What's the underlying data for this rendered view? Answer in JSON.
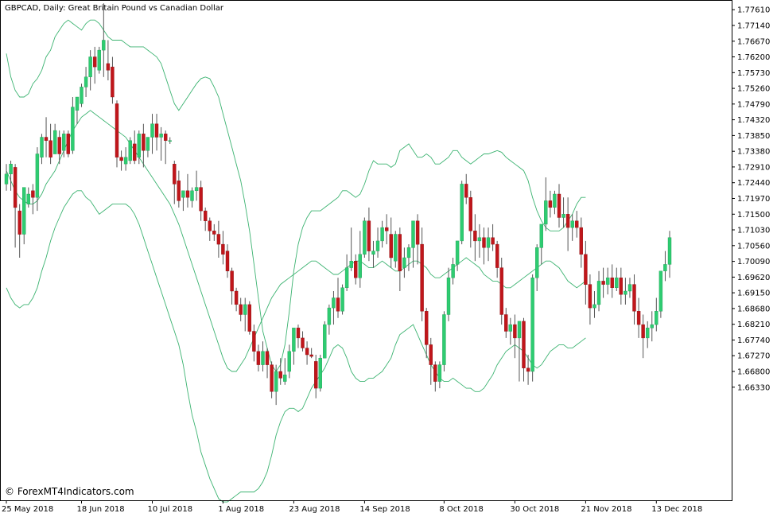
{
  "chart_data": {
    "type": "candlestick",
    "title": "GBPCAD, Daily:  Great Britain Pound vs Canadian Dollar",
    "watermark": "© ForexMT4Indicators.com",
    "ylim": [
      1.6295,
      1.779
    ],
    "y_ticks": [
      "1.77610",
      "1.77140",
      "1.76670",
      "1.76200",
      "1.75730",
      "1.75260",
      "1.74790",
      "1.74320",
      "1.73850",
      "1.73380",
      "1.72910",
      "1.72440",
      "1.71970",
      "1.71500",
      "1.71030",
      "1.70560",
      "1.70090",
      "1.69620",
      "1.69150",
      "1.68680",
      "1.68210",
      "1.67740",
      "1.67270",
      "1.66800",
      "1.66330"
    ],
    "x_labels": [
      {
        "label": "25 May 2018",
        "index": 0
      },
      {
        "label": "18 Jun 2018",
        "index": 17
      },
      {
        "label": "10 Jul 2018",
        "index": 33
      },
      {
        "label": "1 Aug 2018",
        "index": 49
      },
      {
        "label": "23 Aug 2018",
        "index": 65
      },
      {
        "label": "14 Sep 2018",
        "index": 81
      },
      {
        "label": "8 Oct 2018",
        "index": 99
      },
      {
        "label": "30 Oct 2018",
        "index": 115
      },
      {
        "label": "21 Nov 2018",
        "index": 131
      },
      {
        "label": "13 Dec 2018",
        "index": 147
      }
    ],
    "colors": {
      "bull": "#2ecc71",
      "bear": "#c0161b",
      "band": "#3cb371",
      "wick": "#555555"
    },
    "bands": {
      "upper": [
        1.763,
        1.756,
        1.752,
        1.75,
        1.75,
        1.751,
        1.754,
        1.7555,
        1.758,
        1.762,
        1.764,
        1.768,
        1.77,
        1.772,
        1.773,
        1.772,
        1.771,
        1.77,
        1.772,
        1.773,
        1.773,
        1.772,
        1.77,
        1.768,
        1.767,
        1.767,
        1.767,
        1.766,
        1.765,
        1.765,
        1.765,
        1.765,
        1.764,
        1.763,
        1.762,
        1.76,
        1.756,
        1.752,
        1.748,
        1.746,
        1.748,
        1.75,
        1.752,
        1.754,
        1.7555,
        1.756,
        1.7555,
        1.753,
        1.75,
        1.745,
        1.74,
        1.735,
        1.73,
        1.725,
        1.718,
        1.71,
        1.7,
        1.69,
        1.68,
        1.675,
        1.67,
        1.668,
        1.67,
        1.676,
        1.686,
        1.698,
        1.706,
        1.711,
        1.714,
        1.716,
        1.716,
        1.716,
        1.717,
        1.718,
        1.719,
        1.72,
        1.722,
        1.722,
        1.721,
        1.72,
        1.721,
        1.724,
        1.728,
        1.731,
        1.73,
        1.73,
        1.73,
        1.729,
        1.73,
        1.734,
        1.735,
        1.736,
        1.734,
        1.732,
        1.732,
        1.733,
        1.732,
        1.73,
        1.73,
        1.731,
        1.732,
        1.734,
        1.734,
        1.732,
        1.731,
        1.73,
        1.731,
        1.732,
        1.733,
        1.733,
        1.7335,
        1.734,
        1.7335,
        1.732,
        1.731,
        1.73,
        1.729,
        1.728,
        1.725,
        1.72,
        1.716,
        1.713,
        1.711,
        1.71,
        1.71,
        1.71,
        1.711,
        1.713,
        1.715,
        1.718,
        1.72,
        1.72
      ],
      "middle": [
        1.728,
        1.725,
        1.722,
        1.72,
        1.719,
        1.718,
        1.718,
        1.719,
        1.721,
        1.724,
        1.726,
        1.728,
        1.731,
        1.734,
        1.737,
        1.74,
        1.742,
        1.744,
        1.745,
        1.746,
        1.745,
        1.744,
        1.743,
        1.742,
        1.741,
        1.74,
        1.739,
        1.738,
        1.736,
        1.734,
        1.732,
        1.73,
        1.728,
        1.726,
        1.724,
        1.722,
        1.72,
        1.718,
        1.715,
        1.712,
        1.708,
        1.704,
        1.7,
        1.696,
        1.692,
        1.688,
        1.684,
        1.68,
        1.676,
        1.672,
        1.669,
        1.668,
        1.668,
        1.67,
        1.672,
        1.675,
        1.678,
        1.681,
        1.684,
        1.687,
        1.69,
        1.692,
        1.694,
        1.695,
        1.696,
        1.697,
        1.698,
        1.699,
        1.7,
        1.701,
        1.701,
        1.7,
        1.699,
        1.698,
        1.697,
        1.697,
        1.698,
        1.699,
        1.7,
        1.701,
        1.701,
        1.7,
        1.699,
        1.699,
        1.7,
        1.701,
        1.7,
        1.699,
        1.698,
        1.698,
        1.699,
        1.7,
        1.701,
        1.701,
        1.7,
        1.699,
        1.697,
        1.696,
        1.696,
        1.697,
        1.698,
        1.699,
        1.7,
        1.701,
        1.702,
        1.701,
        1.7,
        1.699,
        1.697,
        1.696,
        1.695,
        1.695,
        1.694,
        1.693,
        1.693,
        1.694,
        1.695,
        1.696,
        1.697,
        1.698,
        1.699,
        1.7,
        1.701,
        1.701,
        1.7,
        1.699,
        1.697,
        1.695,
        1.694,
        1.693,
        1.694,
        1.695
      ],
      "lower": [
        1.693,
        1.69,
        1.688,
        1.687,
        1.688,
        1.688,
        1.69,
        1.693,
        1.698,
        1.702,
        1.707,
        1.711,
        1.714,
        1.717,
        1.719,
        1.721,
        1.722,
        1.722,
        1.72,
        1.719,
        1.717,
        1.715,
        1.716,
        1.717,
        1.718,
        1.718,
        1.718,
        1.718,
        1.717,
        1.715,
        1.712,
        1.708,
        1.704,
        1.7,
        1.696,
        1.692,
        1.688,
        1.684,
        1.68,
        1.676,
        1.67,
        1.662,
        1.655,
        1.65,
        1.644,
        1.64,
        1.636,
        1.633,
        1.63,
        1.629,
        1.629,
        1.63,
        1.631,
        1.632,
        1.632,
        1.632,
        1.632,
        1.633,
        1.635,
        1.638,
        1.643,
        1.649,
        1.653,
        1.656,
        1.657,
        1.657,
        1.656,
        1.657,
        1.66,
        1.663,
        1.665,
        1.667,
        1.669,
        1.672,
        1.675,
        1.676,
        1.675,
        1.672,
        1.668,
        1.666,
        1.665,
        1.665,
        1.666,
        1.666,
        1.667,
        1.668,
        1.67,
        1.672,
        1.676,
        1.679,
        1.68,
        1.681,
        1.682,
        1.679,
        1.676,
        1.673,
        1.67,
        1.668,
        1.666,
        1.665,
        1.665,
        1.666,
        1.665,
        1.664,
        1.663,
        1.663,
        1.662,
        1.662,
        1.663,
        1.665,
        1.667,
        1.67,
        1.672,
        1.674,
        1.675,
        1.676,
        1.675,
        1.674,
        1.672,
        1.67,
        1.669,
        1.67,
        1.672,
        1.674,
        1.675,
        1.676,
        1.676,
        1.675,
        1.675,
        1.676,
        1.677,
        1.678
      ]
    },
    "candles": [
      [
        1.724,
        1.73,
        1.727,
        1.722
      ],
      [
        1.727,
        1.731,
        1.73,
        1.722
      ],
      [
        1.729,
        1.73,
        1.717,
        1.705
      ],
      [
        1.716,
        1.718,
        1.709,
        1.702
      ],
      [
        1.709,
        1.722,
        1.723,
        1.706
      ],
      [
        1.718,
        1.723,
        1.721,
        1.717
      ],
      [
        1.722,
        1.724,
        1.72,
        1.715
      ],
      [
        1.72,
        1.735,
        1.733,
        1.716
      ],
      [
        1.732,
        1.739,
        1.738,
        1.73
      ],
      [
        1.738,
        1.744,
        1.737,
        1.732
      ],
      [
        1.737,
        1.742,
        1.732,
        1.73
      ],
      [
        1.733,
        1.742,
        1.74,
        1.733
      ],
      [
        1.738,
        1.74,
        1.733,
        1.73
      ],
      [
        1.734,
        1.74,
        1.739,
        1.732
      ],
      [
        1.739,
        1.74,
        1.733,
        1.732
      ],
      [
        1.734,
        1.75,
        1.747,
        1.733
      ],
      [
        1.746,
        1.749,
        1.75,
        1.742
      ],
      [
        1.748,
        1.754,
        1.753,
        1.747
      ],
      [
        1.753,
        1.759,
        1.756,
        1.75
      ],
      [
        1.756,
        1.764,
        1.762,
        1.752
      ],
      [
        1.762,
        1.765,
        1.759,
        1.754
      ],
      [
        1.758,
        1.765,
        1.764,
        1.757
      ],
      [
        1.764,
        1.778,
        1.767,
        1.756
      ],
      [
        1.76,
        1.767,
        1.758,
        1.755
      ],
      [
        1.759,
        1.762,
        1.75,
        1.748
      ],
      [
        1.748,
        1.749,
        1.732,
        1.729
      ],
      [
        1.732,
        1.734,
        1.731,
        1.728
      ],
      [
        1.73,
        1.735,
        1.732,
        1.728
      ],
      [
        1.731,
        1.738,
        1.737,
        1.73
      ],
      [
        1.736,
        1.74,
        1.731,
        1.73
      ],
      [
        1.732,
        1.74,
        1.739,
        1.73
      ],
      [
        1.739,
        1.742,
        1.734,
        1.729
      ],
      [
        1.734,
        1.738,
        1.738,
        1.732
      ],
      [
        1.738,
        1.745,
        1.742,
        1.733
      ],
      [
        1.742,
        1.745,
        1.738,
        1.734
      ],
      [
        1.738,
        1.741,
        1.739,
        1.731
      ],
      [
        1.739,
        1.74,
        1.737,
        1.73
      ],
      [
        1.737,
        1.738,
        1.737,
        1.736
      ],
      [
        1.73,
        1.731,
        1.724,
        1.718
      ],
      [
        1.725,
        1.728,
        1.719,
        1.717
      ],
      [
        1.72,
        1.721,
        1.722,
        1.716
      ],
      [
        1.722,
        1.727,
        1.72,
        1.717
      ],
      [
        1.719,
        1.723,
        1.722,
        1.717
      ],
      [
        1.722,
        1.728,
        1.723,
        1.719
      ],
      [
        1.723,
        1.725,
        1.716,
        1.713
      ],
      [
        1.716,
        1.717,
        1.713,
        1.71
      ],
      [
        1.713,
        1.714,
        1.71,
        1.707
      ],
      [
        1.71,
        1.712,
        1.709,
        1.707
      ],
      [
        1.709,
        1.713,
        1.706,
        1.702
      ],
      [
        1.706,
        1.71,
        1.703,
        1.7
      ],
      [
        1.704,
        1.706,
        1.698,
        1.696
      ],
      [
        1.698,
        1.699,
        1.692,
        1.688
      ],
      [
        1.692,
        1.693,
        1.688,
        1.686
      ],
      [
        1.688,
        1.69,
        1.685,
        1.683
      ],
      [
        1.685,
        1.69,
        1.688,
        1.68
      ],
      [
        1.688,
        1.689,
        1.68,
        1.679
      ],
      [
        1.68,
        1.682,
        1.674,
        1.671
      ],
      [
        1.674,
        1.676,
        1.67,
        1.668
      ],
      [
        1.67,
        1.677,
        1.674,
        1.668
      ],
      [
        1.674,
        1.675,
        1.67,
        1.666
      ],
      [
        1.67,
        1.671,
        1.662,
        1.66
      ],
      [
        1.662,
        1.67,
        1.668,
        1.658
      ],
      [
        1.668,
        1.672,
        1.666,
        1.664
      ],
      [
        1.665,
        1.672,
        1.667,
        1.664
      ],
      [
        1.668,
        1.676,
        1.674,
        1.666
      ],
      [
        1.674,
        1.68,
        1.681,
        1.67
      ],
      [
        1.681,
        1.682,
        1.678,
        1.675
      ],
      [
        1.678,
        1.68,
        1.675,
        1.674
      ],
      [
        1.675,
        1.677,
        1.673,
        1.67
      ],
      [
        1.673,
        1.675,
        1.6725,
        1.672
      ],
      [
        1.671,
        1.673,
        1.663,
        1.66
      ],
      [
        1.663,
        1.673,
        1.672,
        1.662
      ],
      [
        1.672,
        1.683,
        1.682,
        1.672
      ],
      [
        1.682,
        1.688,
        1.687,
        1.679
      ],
      [
        1.687,
        1.692,
        1.69,
        1.682
      ],
      [
        1.69,
        1.696,
        1.686,
        1.684
      ],
      [
        1.686,
        1.694,
        1.693,
        1.685
      ],
      [
        1.693,
        1.703,
        1.699,
        1.692
      ],
      [
        1.699,
        1.711,
        1.701,
        1.698
      ],
      [
        1.701,
        1.703,
        1.696,
        1.694
      ],
      [
        1.696,
        1.71,
        1.703,
        1.693
      ],
      [
        1.703,
        1.714,
        1.713,
        1.702
      ],
      [
        1.713,
        1.717,
        1.704,
        1.701
      ],
      [
        1.703,
        1.707,
        1.704,
        1.699
      ],
      [
        1.704,
        1.711,
        1.707,
        1.702
      ],
      [
        1.707,
        1.713,
        1.711,
        1.705
      ],
      [
        1.711,
        1.715,
        1.71,
        1.706
      ],
      [
        1.709,
        1.714,
        1.702,
        1.699
      ],
      [
        1.701,
        1.71,
        1.709,
        1.699
      ],
      [
        1.709,
        1.711,
        1.698,
        1.692
      ],
      [
        1.699,
        1.705,
        1.702,
        1.696
      ],
      [
        1.702,
        1.706,
        1.705,
        1.698
      ],
      [
        1.705,
        1.711,
        1.713,
        1.699
      ],
      [
        1.713,
        1.715,
        1.706,
        1.7
      ],
      [
        1.706,
        1.711,
        1.686,
        1.683
      ],
      [
        1.686,
        1.687,
        1.676,
        1.672
      ],
      [
        1.676,
        1.678,
        1.67,
        1.664
      ],
      [
        1.67,
        1.671,
        1.665,
        1.662
      ],
      [
        1.665,
        1.671,
        1.67,
        1.663
      ],
      [
        1.67,
        1.686,
        1.685,
        1.668
      ],
      [
        1.685,
        1.699,
        1.696,
        1.683
      ],
      [
        1.696,
        1.702,
        1.7,
        1.694
      ],
      [
        1.7,
        1.707,
        1.707,
        1.698
      ],
      [
        1.707,
        1.725,
        1.724,
        1.706
      ],
      [
        1.724,
        1.727,
        1.72,
        1.718
      ],
      [
        1.72,
        1.722,
        1.71,
        1.705
      ],
      [
        1.71,
        1.715,
        1.707,
        1.701
      ],
      [
        1.707,
        1.712,
        1.708,
        1.702
      ],
      [
        1.708,
        1.711,
        1.705,
        1.7
      ],
      [
        1.705,
        1.711,
        1.708,
        1.701
      ],
      [
        1.708,
        1.712,
        1.706,
        1.704
      ],
      [
        1.706,
        1.707,
        1.699,
        1.696
      ],
      [
        1.699,
        1.702,
        1.685,
        1.682
      ],
      [
        1.685,
        1.687,
        1.68,
        1.678
      ],
      [
        1.68,
        1.684,
        1.682,
        1.676
      ],
      [
        1.682,
        1.685,
        1.678,
        1.672
      ],
      [
        1.678,
        1.683,
        1.683,
        1.665
      ],
      [
        1.683,
        1.684,
        1.669,
        1.665
      ],
      [
        1.669,
        1.673,
        1.668,
        1.664
      ],
      [
        1.668,
        1.697,
        1.696,
        1.665
      ],
      [
        1.696,
        1.706,
        1.705,
        1.692
      ],
      [
        1.705,
        1.711,
        1.712,
        1.7
      ],
      [
        1.712,
        1.726,
        1.719,
        1.71
      ],
      [
        1.719,
        1.722,
        1.717,
        1.714
      ],
      [
        1.717,
        1.722,
        1.721,
        1.715
      ],
      [
        1.721,
        1.724,
        1.714,
        1.711
      ],
      [
        1.714,
        1.72,
        1.715,
        1.711
      ],
      [
        1.715,
        1.72,
        1.711,
        1.704
      ],
      [
        1.711,
        1.715,
        1.713,
        1.707
      ],
      [
        1.713,
        1.716,
        1.711,
        1.708
      ],
      [
        1.711,
        1.714,
        1.703,
        1.699
      ],
      [
        1.703,
        1.707,
        1.694,
        1.688
      ],
      [
        1.694,
        1.697,
        1.687,
        1.682
      ],
      [
        1.687,
        1.692,
        1.688,
        1.684
      ],
      [
        1.688,
        1.698,
        1.695,
        1.686
      ],
      [
        1.695,
        1.699,
        1.694,
        1.69
      ],
      [
        1.694,
        1.699,
        1.696,
        1.691
      ],
      [
        1.696,
        1.7,
        1.693,
        1.69
      ],
      [
        1.693,
        1.699,
        1.696,
        1.692
      ],
      [
        1.696,
        1.699,
        1.691,
        1.688
      ],
      [
        1.691,
        1.696,
        1.692,
        1.688
      ],
      [
        1.692,
        1.696,
        1.694,
        1.69
      ],
      [
        1.694,
        1.697,
        1.686,
        1.682
      ],
      [
        1.686,
        1.69,
        1.682,
        1.678
      ],
      [
        1.682,
        1.685,
        1.678,
        1.672
      ],
      [
        1.678,
        1.683,
        1.681,
        1.675
      ],
      [
        1.681,
        1.686,
        1.682,
        1.677
      ],
      [
        1.682,
        1.69,
        1.686,
        1.68
      ],
      [
        1.686,
        1.696,
        1.698,
        1.684
      ],
      [
        1.698,
        1.704,
        1.7,
        1.695
      ],
      [
        1.7,
        1.71,
        1.708,
        1.696
      ]
    ]
  }
}
